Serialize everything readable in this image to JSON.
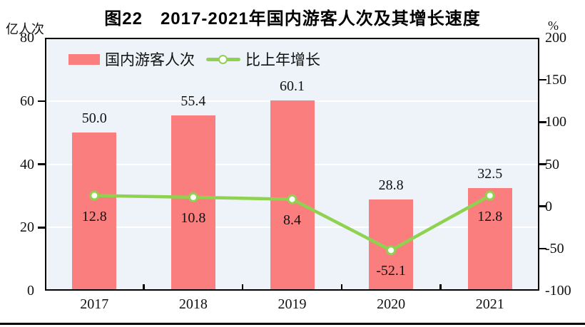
{
  "title": "图22　2017-2021年国内游客人次及其增长速度",
  "left_axis": {
    "unit": "亿人次",
    "ticks": [
      "80",
      "60",
      "40",
      "20",
      "0"
    ]
  },
  "right_axis": {
    "unit": "%",
    "ticks": [
      "200",
      "150",
      "100",
      "50",
      "0",
      "-50",
      "-100"
    ]
  },
  "legend": [
    {
      "label": "国内游客人次",
      "type": "bar"
    },
    {
      "label": "比上年增长",
      "type": "line"
    }
  ],
  "colors": {
    "bar": "#fb7e7e",
    "line": "#8fd24f",
    "marker_fill": "#ffffff",
    "plot_background": "#edf3f8",
    "gridline": "#ffffff",
    "axis": "#000000"
  },
  "chart_data": {
    "type": "bar",
    "subtype": "bar+line dual-axis",
    "title": "图22　2017-2021年国内游客人次及其增长速度",
    "categories": [
      "2017",
      "2018",
      "2019",
      "2020",
      "2021"
    ],
    "series": [
      {
        "name": "国内游客人次",
        "type": "bar",
        "axis": "left",
        "unit": "亿人次",
        "values": [
          50.0,
          55.4,
          60.1,
          28.8,
          32.5
        ],
        "labels": [
          "50.0",
          "55.4",
          "60.1",
          "28.8",
          "32.5"
        ],
        "color": "#fb7e7e"
      },
      {
        "name": "比上年增长",
        "type": "line",
        "axis": "right",
        "unit": "%",
        "values": [
          12.8,
          10.8,
          8.4,
          -52.1,
          12.8
        ],
        "labels": [
          "12.8",
          "10.8",
          "8.4",
          "-52.1",
          "12.8"
        ],
        "color": "#8fd24f"
      }
    ],
    "left_ylim": [
      0,
      80
    ],
    "right_ylim": [
      -100,
      200
    ],
    "left_tick_step": 20,
    "right_tick_step": 50,
    "grid": true,
    "grid_values_left_axis": [
      60,
      40,
      20
    ],
    "legend_position": "top-left-inside"
  }
}
